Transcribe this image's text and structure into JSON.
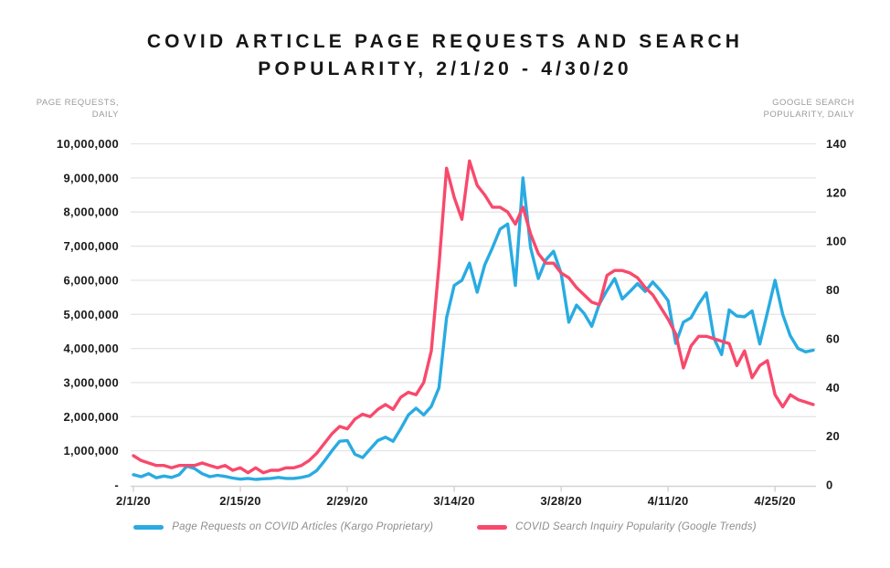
{
  "title": {
    "line1": "COVID ARTICLE PAGE REQUESTS AND SEARCH",
    "line2": "POPULARITY, 2/1/20 - 4/30/20"
  },
  "left_axis": {
    "caption_line1": "PAGE REQUESTS,",
    "caption_line2": "DAILY",
    "ticks": [
      "10,000,000",
      "9,000,000",
      "8,000,000",
      "7,000,000",
      "6,000,000",
      "5,000,000",
      "4,000,000",
      "3,000,000",
      "2,000,000",
      "1,000,000",
      "-"
    ]
  },
  "right_axis": {
    "caption_line1": "GOOGLE SEARCH",
    "caption_line2": "POPULARITY, DAILY",
    "ticks": [
      "140",
      "120",
      "100",
      "80",
      "60",
      "40",
      "20",
      "0"
    ]
  },
  "legend": [
    {
      "label": "Page Requests on COVID Articles (Kargo Proprietary)",
      "color": "#29ABE2"
    },
    {
      "label": "COVID Search Inquiry Popularity (Google Trends)",
      "color": "#F8496C"
    }
  ],
  "chart_data": {
    "type": "line",
    "title": "COVID ARTICLE PAGE REQUESTS AND SEARCH POPULARITY, 2/1/20 - 4/30/20",
    "x_start_date": "2/1/20",
    "x_end_date": "4/30/20",
    "x_frequency": "daily",
    "x_tick_labels": [
      "2/1/20",
      "2/15/20",
      "2/29/20",
      "3/14/20",
      "3/28/20",
      "4/11/20",
      "4/25/20"
    ],
    "x_tick_day_index": [
      0,
      14,
      28,
      42,
      56,
      70,
      84
    ],
    "left_ylabel": "PAGE REQUESTS, DAILY",
    "right_ylabel": "GOOGLE SEARCH POPULARITY, DAILY",
    "left_ylim": [
      0,
      10000000
    ],
    "right_ylim": [
      0,
      140
    ],
    "grid": "horizontal",
    "legend_position": "bottom",
    "series": [
      {
        "name": "Page Requests on COVID Articles (Kargo Proprietary)",
        "axis": "left",
        "color": "#29ABE2",
        "values": [
          300000,
          240000,
          330000,
          210000,
          260000,
          220000,
          300000,
          550000,
          480000,
          330000,
          240000,
          280000,
          250000,
          200000,
          170000,
          190000,
          160000,
          180000,
          190000,
          220000,
          190000,
          190000,
          220000,
          270000,
          420000,
          700000,
          1000000,
          1280000,
          1300000,
          900000,
          800000,
          1050000,
          1300000,
          1400000,
          1280000,
          1650000,
          2050000,
          2250000,
          2050000,
          2300000,
          2850000,
          4900000,
          5850000,
          6000000,
          6500000,
          5650000,
          6450000,
          6950000,
          7500000,
          7650000,
          5850000,
          9000000,
          6950000,
          6050000,
          6600000,
          6850000,
          6200000,
          4770000,
          5270000,
          5030000,
          4650000,
          5300000,
          5700000,
          6050000,
          5450000,
          5670000,
          5900000,
          5670000,
          5950000,
          5700000,
          5400000,
          4150000,
          4770000,
          4900000,
          5300000,
          5630000,
          4300000,
          3820000,
          5130000,
          4950000,
          4930000,
          5100000,
          4130000,
          5050000,
          6000000,
          5000000,
          4370000,
          4000000,
          3900000,
          3950000
        ]
      },
      {
        "name": "COVID Search Inquiry Popularity (Google Trends)",
        "axis": "right",
        "color": "#F8496C",
        "values": [
          12,
          10,
          9,
          8,
          8,
          7,
          8,
          8,
          8,
          9,
          8,
          7,
          8,
          6,
          7,
          5,
          7,
          5,
          6,
          6,
          7,
          7,
          8,
          10,
          13,
          17,
          21,
          24,
          23,
          27,
          29,
          28,
          31,
          33,
          31,
          36,
          38,
          37,
          42,
          55,
          90,
          130,
          118,
          109,
          133,
          123,
          119,
          114,
          114,
          112,
          107,
          114,
          103,
          95,
          91,
          91,
          87,
          85,
          81,
          78,
          75,
          74,
          86,
          88,
          88,
          87,
          85,
          81,
          78,
          73,
          68,
          62,
          48,
          57,
          61,
          61,
          60,
          59,
          58,
          49,
          55,
          44,
          49,
          51,
          37,
          32,
          37,
          35,
          34,
          33
        ]
      }
    ]
  }
}
